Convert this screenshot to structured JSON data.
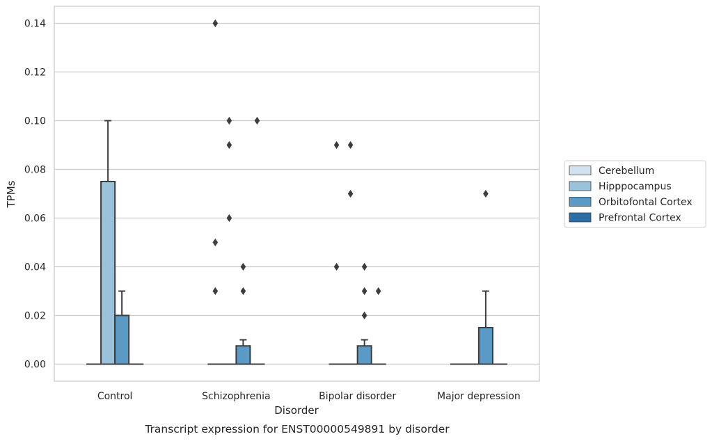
{
  "chart_data": {
    "type": "box",
    "xlabel": "Disorder",
    "ylabel": "TPMs",
    "caption": "Transcript expression for ENST00000549891 by disorder",
    "categories": [
      "Control",
      "Schizophrenia",
      "Bipolar disorder",
      "Major depression"
    ],
    "ylim": [
      -0.007,
      0.147
    ],
    "yticks": [
      "0.00",
      "0.02",
      "0.04",
      "0.06",
      "0.08",
      "0.10",
      "0.12",
      "0.14"
    ],
    "ytick_values": [
      0,
      0.02,
      0.04,
      0.06,
      0.08,
      0.1,
      0.12,
      0.14
    ],
    "grid": true,
    "legend_position": "right",
    "series": [
      {
        "name": "Cerebellum",
        "color": "#d2e2f1",
        "boxes": [
          {
            "category": "Control",
            "q1": 0,
            "median": 0,
            "q3": 0,
            "whisker_low": 0,
            "whisker_high": 0,
            "outliers": []
          },
          {
            "category": "Schizophrenia",
            "q1": 0,
            "median": 0,
            "q3": 0,
            "whisker_low": 0,
            "whisker_high": 0,
            "outliers": [
              0.14,
              0.05,
              0.03
            ]
          },
          {
            "category": "Bipolar disorder",
            "q1": 0,
            "median": 0,
            "q3": 0,
            "whisker_low": 0,
            "whisker_high": 0,
            "outliers": [
              0.09,
              0.04
            ]
          },
          {
            "category": "Major depression",
            "q1": 0,
            "median": 0,
            "q3": 0,
            "whisker_low": 0,
            "whisker_high": 0,
            "outliers": []
          }
        ]
      },
      {
        "name": "Hipppocampus",
        "color": "#9ac3db",
        "boxes": [
          {
            "category": "Control",
            "q1": 0,
            "median": 0,
            "q3": 0.075,
            "whisker_low": 0,
            "whisker_high": 0.1,
            "outliers": []
          },
          {
            "category": "Schizophrenia",
            "q1": 0,
            "median": 0,
            "q3": 0,
            "whisker_low": 0,
            "whisker_high": 0,
            "outliers": [
              0.1,
              0.09,
              0.06
            ]
          },
          {
            "category": "Bipolar disorder",
            "q1": 0,
            "median": 0,
            "q3": 0,
            "whisker_low": 0,
            "whisker_high": 0,
            "outliers": [
              0.09,
              0.07
            ]
          },
          {
            "category": "Major depression",
            "q1": 0,
            "median": 0,
            "q3": 0,
            "whisker_low": 0,
            "whisker_high": 0,
            "outliers": []
          }
        ]
      },
      {
        "name": "Orbitofontal Cortex",
        "color": "#5a9ac5",
        "boxes": [
          {
            "category": "Control",
            "q1": 0,
            "median": 0,
            "q3": 0.02,
            "whisker_low": 0,
            "whisker_high": 0.03,
            "outliers": []
          },
          {
            "category": "Schizophrenia",
            "q1": 0,
            "median": 0,
            "q3": 0.0075,
            "whisker_low": 0,
            "whisker_high": 0.01,
            "outliers": [
              0.04,
              0.03
            ]
          },
          {
            "category": "Bipolar disorder",
            "q1": 0,
            "median": 0,
            "q3": 0.0075,
            "whisker_low": 0,
            "whisker_high": 0.01,
            "outliers": [
              0.04,
              0.03,
              0.02
            ]
          },
          {
            "category": "Major depression",
            "q1": 0,
            "median": 0,
            "q3": 0.015,
            "whisker_low": 0,
            "whisker_high": 0.03,
            "outliers": [
              0.07
            ]
          }
        ]
      },
      {
        "name": "Prefrontal Cortex",
        "color": "#2d6ea8",
        "boxes": [
          {
            "category": "Control",
            "q1": 0,
            "median": 0,
            "q3": 0,
            "whisker_low": 0,
            "whisker_high": 0,
            "outliers": []
          },
          {
            "category": "Schizophrenia",
            "q1": 0,
            "median": 0,
            "q3": 0,
            "whisker_low": 0,
            "whisker_high": 0,
            "outliers": [
              0.1
            ]
          },
          {
            "category": "Bipolar disorder",
            "q1": 0,
            "median": 0,
            "q3": 0,
            "whisker_low": 0,
            "whisker_high": 0,
            "outliers": [
              0.03
            ]
          },
          {
            "category": "Major depression",
            "q1": 0,
            "median": 0,
            "q3": 0,
            "whisker_low": 0,
            "whisker_high": 0,
            "outliers": []
          }
        ]
      }
    ]
  }
}
